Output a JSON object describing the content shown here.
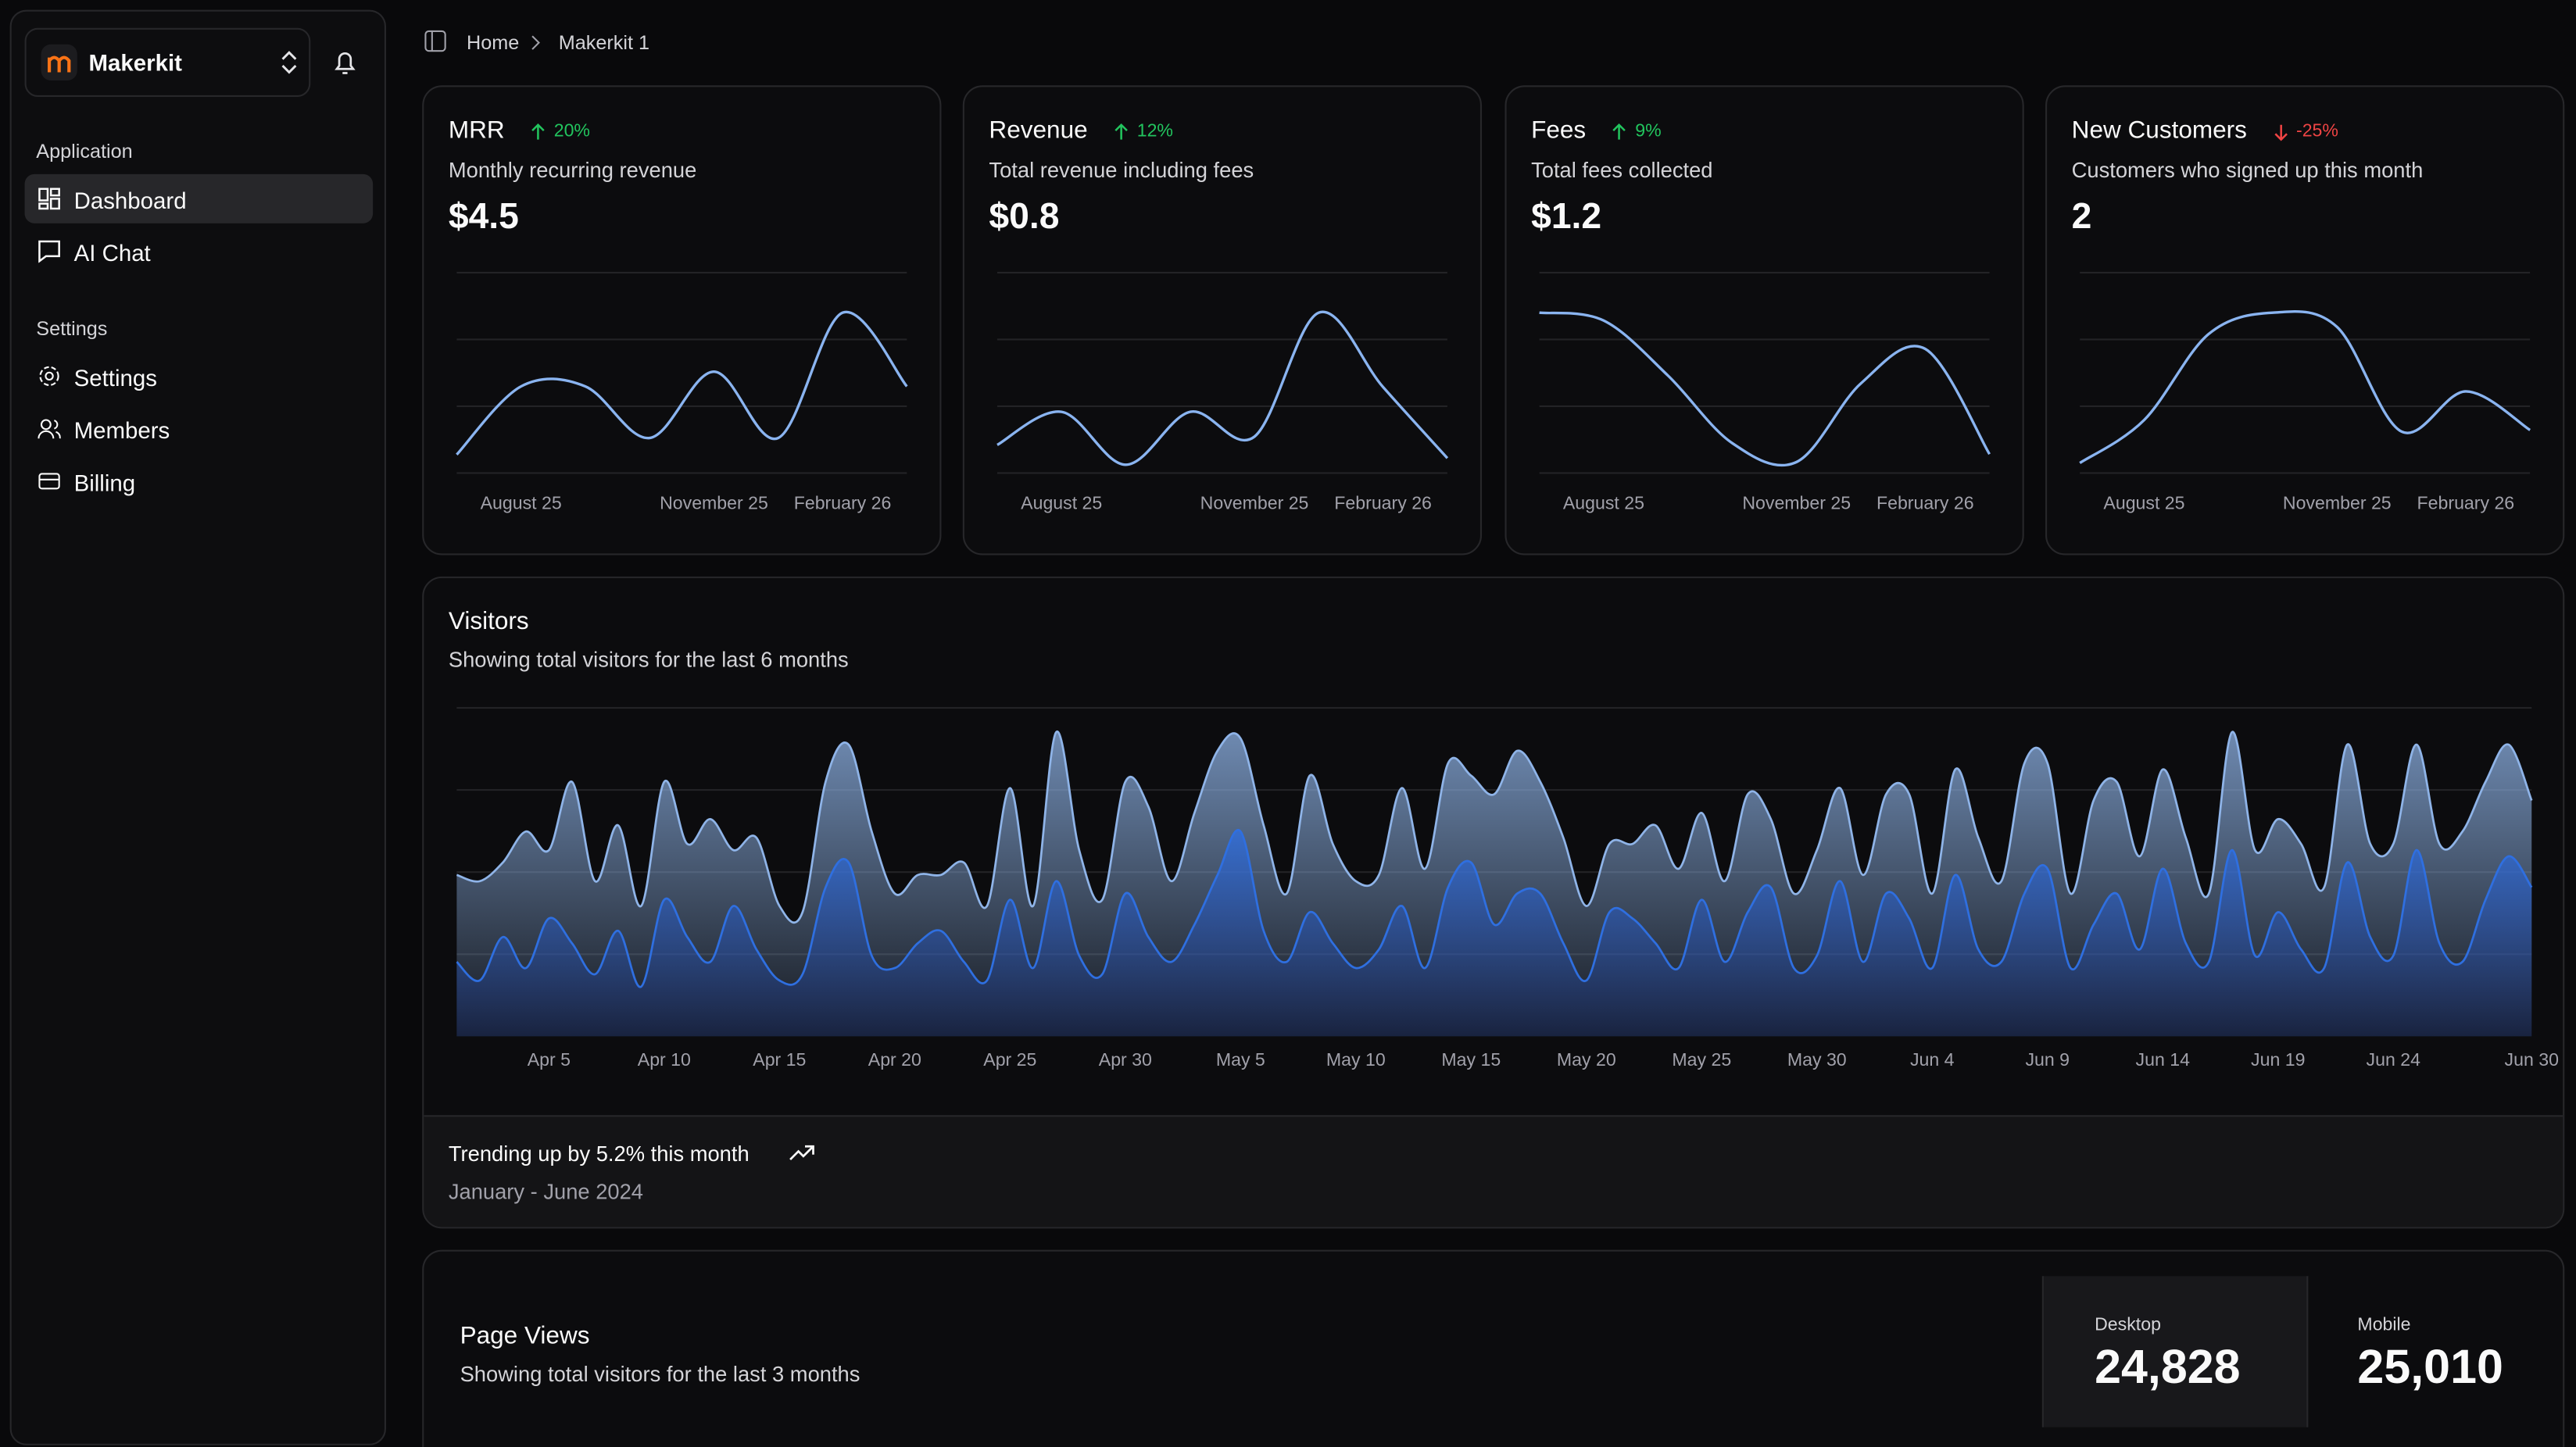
{
  "sidebar": {
    "brand": "Makerkit",
    "groups": [
      {
        "label": "Application",
        "items": [
          "Dashboard",
          "AI Chat"
        ]
      },
      {
        "label": "Settings",
        "items": [
          "Settings",
          "Members",
          "Billing"
        ]
      }
    ]
  },
  "breadcrumb": [
    "Home",
    "Makerkit 1"
  ],
  "cards": [
    {
      "title": "MRR",
      "badge": "20%",
      "trend": "up",
      "description": "Monthly recurring revenue",
      "value": "$4.5"
    },
    {
      "title": "Revenue",
      "badge": "12%",
      "trend": "up",
      "description": "Total revenue including fees",
      "value": "$0.8"
    },
    {
      "title": "Fees",
      "badge": "9%",
      "trend": "up",
      "description": "Total fees collected",
      "value": "$1.2"
    },
    {
      "title": "New Customers",
      "badge": "-25%",
      "trend": "down",
      "description": "Customers who signed up this month",
      "value": "2"
    }
  ],
  "chart_data": [
    {
      "type": "line",
      "color": "#8ab4f0",
      "categories": [
        null,
        "August 25",
        null,
        null,
        "November 25",
        null,
        "February 26",
        null
      ],
      "values": [
        10,
        47,
        47,
        19,
        55,
        19,
        87,
        47
      ]
    },
    {
      "type": "line",
      "color": "#8ab4f0",
      "categories": [
        null,
        "August 25",
        null,
        null,
        "November 25",
        null,
        "February 26",
        null
      ],
      "values": [
        17,
        37,
        5,
        37,
        22,
        97,
        52,
        9
      ]
    },
    {
      "type": "line",
      "color": "#8ab4f0",
      "categories": [
        null,
        "August 25",
        null,
        null,
        "November 25",
        null,
        "February 26",
        null
      ],
      "values": [
        102,
        97,
        62,
        19,
        7,
        57,
        79,
        12
      ]
    },
    {
      "type": "line",
      "color": "#8ab4f0",
      "categories": [
        null,
        "August 25",
        null,
        null,
        "November 25",
        null,
        "February 26",
        null
      ],
      "values": [
        7,
        37,
        97,
        112,
        102,
        29,
        57,
        30
      ]
    },
    {
      "type": "stacked-area",
      "title": "Visitors",
      "subtitle": "Showing total visitors for the last 6 months",
      "categories": [
        null,
        null,
        null,
        null,
        "Apr 5",
        null,
        null,
        null,
        null,
        "Apr 10",
        null,
        null,
        null,
        null,
        "Apr 15",
        null,
        null,
        null,
        null,
        "Apr 20",
        null,
        null,
        null,
        null,
        "Apr 25",
        null,
        null,
        null,
        null,
        "Apr 30",
        null,
        null,
        null,
        null,
        "May 5",
        null,
        null,
        null,
        null,
        "May 10",
        null,
        null,
        null,
        null,
        "May 15",
        null,
        null,
        null,
        null,
        "May 20",
        null,
        null,
        null,
        null,
        "May 25",
        null,
        null,
        null,
        null,
        "May 30",
        null,
        null,
        null,
        null,
        "Jun 4",
        null,
        null,
        null,
        null,
        "Jun 9",
        null,
        null,
        null,
        null,
        "Jun 14",
        null,
        null,
        null,
        null,
        "Jun 19",
        null,
        null,
        null,
        null,
        "Jun 24",
        null,
        null,
        null,
        null,
        null,
        "Jun 30"
      ],
      "series": [
        {
          "color": "#2f6fe0",
          "values": [
            120,
            90,
            160,
            110,
            190,
            150,
            100,
            170,
            80,
            220,
            160,
            120,
            210,
            140,
            90,
            100,
            240,
            280,
            130,
            110,
            150,
            170,
            120,
            90,
            220,
            110,
            250,
            130,
            100,
            230,
            160,
            120,
            180,
            260,
            330,
            170,
            120,
            200,
            150,
            110,
            140,
            210,
            110,
            240,
            280,
            180,
            230,
            230,
            150,
            90,
            200,
            190,
            150,
            110,
            220,
            120,
            200,
            240,
            110,
            130,
            250,
            120,
            230,
            190,
            110,
            260,
            140,
            120,
            230,
            270,
            110,
            180,
            230,
            140,
            270,
            150,
            120,
            300,
            130,
            200,
            140,
            110,
            280,
            160,
            130,
            300,
            150,
            120,
            220,
            290,
            240
          ]
        },
        {
          "color": "#8fb4e8",
          "values": [
            140,
            160,
            120,
            220,
            110,
            260,
            150,
            170,
            130,
            190,
            150,
            230,
            90,
            180,
            120,
            100,
            170,
            190,
            200,
            120,
            110,
            90,
            160,
            120,
            180,
            100,
            240,
            170,
            120,
            180,
            210,
            130,
            180,
            200,
            150,
            170,
            110,
            220,
            160,
            140,
            120,
            190,
            160,
            200,
            140,
            210,
            230,
            180,
            170,
            120,
            110,
            120,
            190,
            160,
            140,
            130,
            190,
            110,
            120,
            170,
            150,
            140,
            160,
            200,
            120,
            170,
            180,
            130,
            210,
            170,
            120,
            200,
            180,
            150,
            160,
            170,
            110,
            190,
            170,
            150,
            170,
            130,
            190,
            150,
            180,
            170,
            160,
            210,
            190,
            180,
            140
          ]
        }
      ]
    }
  ],
  "visitors_footer": {
    "headline": "Trending up by 5.2% this month",
    "period": "January - June 2024"
  },
  "page_views": {
    "title": "Page Views",
    "subtitle": "Showing total visitors for the last 3 months",
    "stats": [
      {
        "label": "Desktop",
        "value": "24,828"
      },
      {
        "label": "Mobile",
        "value": "25,010"
      }
    ]
  }
}
